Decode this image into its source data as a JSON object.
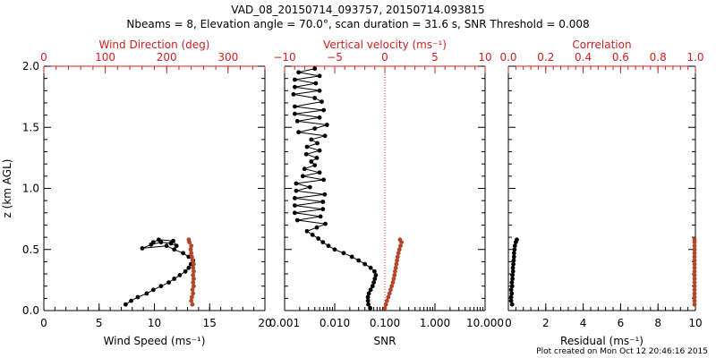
{
  "title_line1": "VAD_08_20150714_093757, 20150714.093815",
  "title_line2": "Nbeams = 8, Elevation angle = 70.0°, scan duration = 31.6 s, SNR Threshold = 0.008",
  "footer": "Plot created on Mon Oct 12 20:46:16 2015",
  "colors": {
    "black": "#000000",
    "red": "#cc2222",
    "brown": "#b5442a"
  },
  "chart_data": [
    {
      "type": "scatter",
      "title": "",
      "ylabel": "z (km AGL)",
      "ylim": [
        0,
        2.0
      ],
      "yticks": [
        "0.0",
        "0.5",
        "1.0",
        "1.5",
        "2.0"
      ],
      "xlabel": "Wind Speed (ms⁻¹)",
      "xlim": [
        0,
        20
      ],
      "xticks": [
        "0",
        "5",
        "10",
        "15",
        "20"
      ],
      "x2label": "Wind Direction (deg)",
      "x2lim": [
        0,
        360
      ],
      "x2ticks": [
        "0",
        "100",
        "200",
        "300"
      ],
      "series": [
        {
          "axis": "bottom",
          "color": "black",
          "connected": true,
          "points": [
            [
              7.4,
              0.05
            ],
            [
              7.9,
              0.08
            ],
            [
              8.5,
              0.11
            ],
            [
              9.3,
              0.14
            ],
            [
              9.9,
              0.17
            ],
            [
              10.6,
              0.2
            ],
            [
              11.3,
              0.23
            ],
            [
              11.8,
              0.26
            ],
            [
              12.3,
              0.29
            ],
            [
              12.8,
              0.32
            ],
            [
              13.1,
              0.35
            ],
            [
              13.3,
              0.38
            ],
            [
              13.5,
              0.41
            ],
            [
              13.1,
              0.44
            ],
            [
              12.6,
              0.47
            ],
            [
              11.8,
              0.5
            ],
            [
              11.1,
              0.53
            ],
            [
              8.9,
              0.51
            ],
            [
              9.7,
              0.54
            ],
            [
              10.6,
              0.56
            ],
            [
              11.5,
              0.55
            ],
            [
              12.0,
              0.53
            ],
            [
              11.7,
              0.57
            ],
            [
              10.4,
              0.58
            ],
            [
              9.9,
              0.56
            ]
          ]
        },
        {
          "axis": "top",
          "color": "brown",
          "connected": false,
          "points": [
            [
              242,
              0.05
            ],
            [
              240,
              0.08
            ],
            [
              241,
              0.11
            ],
            [
              243,
              0.14
            ],
            [
              242,
              0.17
            ],
            [
              244,
              0.2
            ],
            [
              243,
              0.23
            ],
            [
              244,
              0.26
            ],
            [
              243,
              0.29
            ],
            [
              244,
              0.32
            ],
            [
              243,
              0.35
            ],
            [
              244,
              0.38
            ],
            [
              242,
              0.41
            ],
            [
              241,
              0.44
            ],
            [
              240,
              0.47
            ],
            [
              239,
              0.5
            ],
            [
              240,
              0.53
            ],
            [
              237,
              0.56
            ],
            [
              236,
              0.58
            ]
          ]
        }
      ]
    },
    {
      "type": "scatter",
      "title": "",
      "xlabel": "SNR",
      "xscale": "log",
      "xlim": [
        0.001,
        10.0
      ],
      "xticks": [
        "0.001",
        "0.010",
        "0.100",
        "1.000",
        "10.000"
      ],
      "x2label": "Vertical velocity (ms⁻¹)",
      "x2lim": [
        -10,
        10
      ],
      "x2ticks": [
        "−10",
        "−5",
        "0",
        "5",
        "10"
      ],
      "ylim": [
        0,
        2.0
      ],
      "reference_line": {
        "x2": 0,
        "style": "dotted",
        "color": "red"
      },
      "series": [
        {
          "axis": "bottom",
          "color": "black",
          "connected": true,
          "points": [
            [
              0.051,
              0.02
            ],
            [
              0.047,
              0.05
            ],
            [
              0.046,
              0.08
            ],
            [
              0.046,
              0.11
            ],
            [
              0.048,
              0.14
            ],
            [
              0.052,
              0.17
            ],
            [
              0.057,
              0.2
            ],
            [
              0.06,
              0.23
            ],
            [
              0.063,
              0.26
            ],
            [
              0.066,
              0.29
            ],
            [
              0.062,
              0.32
            ],
            [
              0.052,
              0.35
            ],
            [
              0.04,
              0.38
            ],
            [
              0.03,
              0.41
            ],
            [
              0.022,
              0.44
            ],
            [
              0.015,
              0.47
            ],
            [
              0.01,
              0.5
            ],
            [
              0.0075,
              0.53
            ],
            [
              0.0058,
              0.56
            ],
            [
              0.0047,
              0.59
            ],
            [
              0.0036,
              0.62
            ],
            [
              0.0028,
              0.65
            ],
            [
              0.0044,
              0.68
            ],
            [
              0.0065,
              0.71
            ],
            [
              0.0018,
              0.74
            ],
            [
              0.0052,
              0.77
            ],
            [
              0.0016,
              0.8
            ],
            [
              0.0058,
              0.83
            ],
            [
              0.0016,
              0.86
            ],
            [
              0.0058,
              0.89
            ],
            [
              0.0016,
              0.92
            ],
            [
              0.0063,
              0.95
            ],
            [
              0.0017,
              0.98
            ],
            [
              0.0032,
              1.01
            ],
            [
              0.0017,
              1.04
            ],
            [
              0.006,
              1.07
            ],
            [
              0.0023,
              1.1
            ],
            [
              0.005,
              1.13
            ],
            [
              0.0025,
              1.16
            ],
            [
              0.004,
              1.19
            ],
            [
              0.0034,
              1.22
            ],
            [
              0.0044,
              1.25
            ],
            [
              0.0027,
              1.28
            ],
            [
              0.005,
              1.31
            ],
            [
              0.0028,
              1.34
            ],
            [
              0.0045,
              1.37
            ],
            [
              0.0034,
              1.4
            ],
            [
              0.0064,
              1.43
            ],
            [
              0.0019,
              1.46
            ],
            [
              0.004,
              1.49
            ],
            [
              0.007,
              1.52
            ],
            [
              0.0018,
              1.55
            ],
            [
              0.005,
              1.58
            ],
            [
              0.0016,
              1.61
            ],
            [
              0.006,
              1.64
            ],
            [
              0.0016,
              1.67
            ],
            [
              0.0055,
              1.71
            ],
            [
              0.004,
              1.74
            ],
            [
              0.0015,
              1.77
            ],
            [
              0.005,
              1.8
            ],
            [
              0.0016,
              1.83
            ],
            [
              0.0042,
              1.86
            ],
            [
              0.0016,
              1.89
            ],
            [
              0.005,
              1.92
            ],
            [
              0.0019,
              1.95
            ],
            [
              0.004,
              1.98
            ]
          ]
        },
        {
          "axis": "bottom",
          "color": "brown",
          "connected": false,
          "points": [
            [
              0.1,
              0.02
            ],
            [
              0.105,
              0.05
            ],
            [
              0.11,
              0.08
            ],
            [
              0.117,
              0.11
            ],
            [
              0.124,
              0.14
            ],
            [
              0.13,
              0.17
            ],
            [
              0.137,
              0.2
            ],
            [
              0.145,
              0.23
            ],
            [
              0.15,
              0.26
            ],
            [
              0.155,
              0.29
            ],
            [
              0.16,
              0.32
            ],
            [
              0.165,
              0.35
            ],
            [
              0.17,
              0.38
            ],
            [
              0.175,
              0.41
            ],
            [
              0.18,
              0.44
            ],
            [
              0.187,
              0.47
            ],
            [
              0.195,
              0.5
            ],
            [
              0.205,
              0.53
            ],
            [
              0.215,
              0.56
            ],
            [
              0.2,
              0.58
            ]
          ]
        }
      ]
    },
    {
      "type": "scatter",
      "title": "",
      "xlabel": "Residual (ms⁻¹)",
      "xlim": [
        0,
        10
      ],
      "xticks": [
        "0",
        "2",
        "4",
        "6",
        "8",
        "10"
      ],
      "x2label": "Correlation",
      "x2lim": [
        0.0,
        1.0
      ],
      "x2ticks": [
        "0.0",
        "0.2",
        "0.4",
        "0.6",
        "0.8",
        "1.0"
      ],
      "ylim": [
        0,
        2.0
      ],
      "series": [
        {
          "axis": "bottom",
          "color": "black",
          "connected": true,
          "points": [
            [
              0.2,
              0.05
            ],
            [
              0.15,
              0.08
            ],
            [
              0.15,
              0.11
            ],
            [
              0.18,
              0.14
            ],
            [
              0.15,
              0.17
            ],
            [
              0.2,
              0.2
            ],
            [
              0.18,
              0.23
            ],
            [
              0.22,
              0.26
            ],
            [
              0.22,
              0.29
            ],
            [
              0.25,
              0.32
            ],
            [
              0.24,
              0.35
            ],
            [
              0.27,
              0.38
            ],
            [
              0.28,
              0.41
            ],
            [
              0.3,
              0.44
            ],
            [
              0.3,
              0.47
            ],
            [
              0.33,
              0.5
            ],
            [
              0.35,
              0.53
            ],
            [
              0.4,
              0.56
            ],
            [
              0.45,
              0.58
            ]
          ]
        },
        {
          "axis": "top",
          "color": "brown",
          "connected": false,
          "points": [
            [
              0.995,
              0.05
            ],
            [
              0.995,
              0.08
            ],
            [
              0.995,
              0.11
            ],
            [
              0.995,
              0.14
            ],
            [
              0.995,
              0.17
            ],
            [
              0.995,
              0.2
            ],
            [
              0.995,
              0.23
            ],
            [
              0.995,
              0.26
            ],
            [
              0.995,
              0.29
            ],
            [
              0.995,
              0.32
            ],
            [
              0.995,
              0.35
            ],
            [
              0.995,
              0.38
            ],
            [
              0.995,
              0.41
            ],
            [
              0.995,
              0.44
            ],
            [
              0.995,
              0.47
            ],
            [
              0.995,
              0.5
            ],
            [
              0.995,
              0.53
            ],
            [
              0.995,
              0.56
            ],
            [
              0.995,
              0.58
            ]
          ]
        }
      ]
    }
  ]
}
